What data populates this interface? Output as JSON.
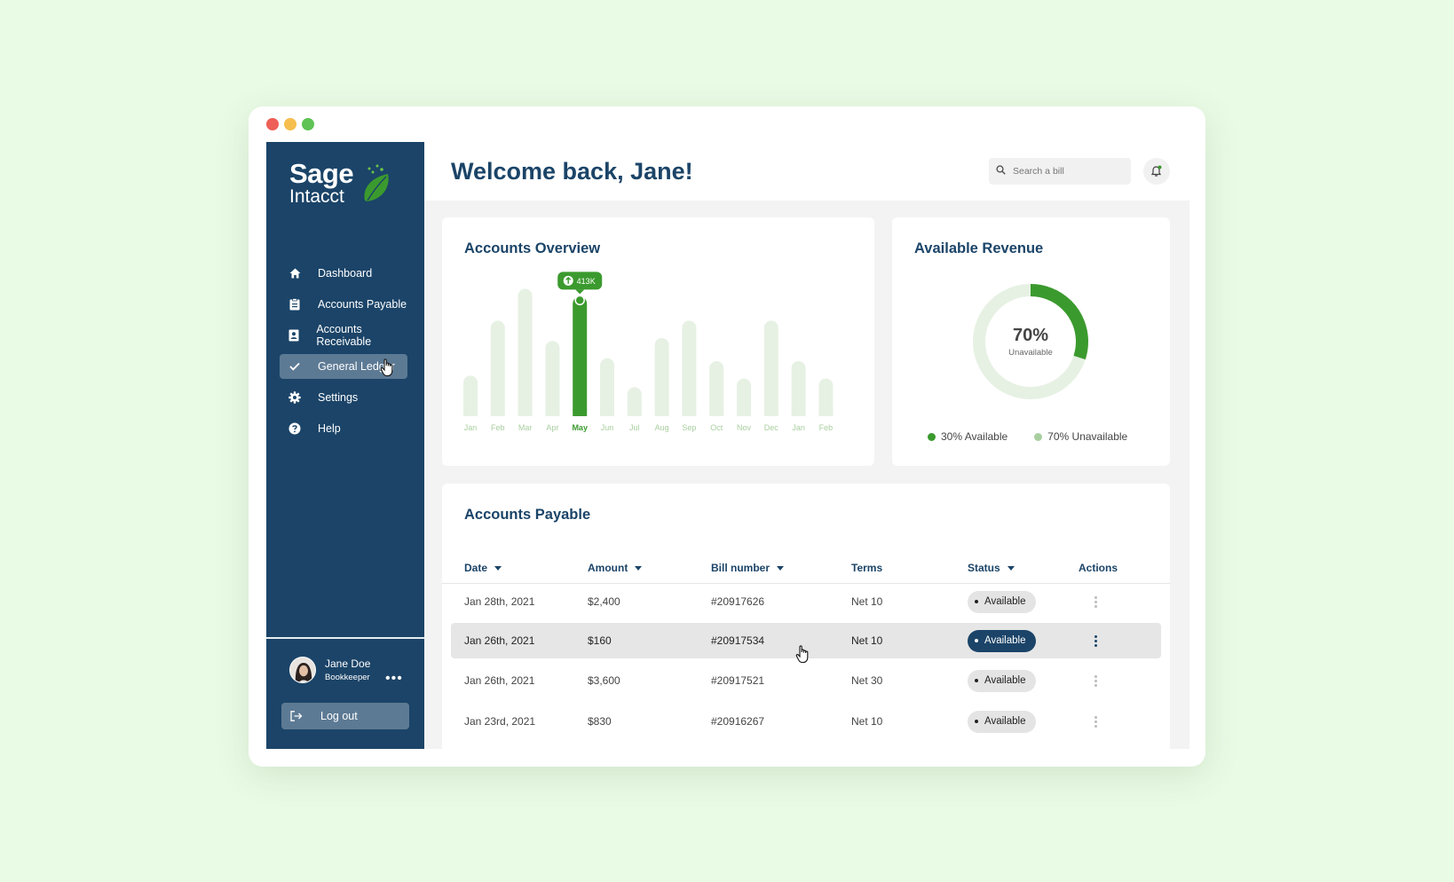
{
  "brand": {
    "name_line1": "Sage",
    "name_line2": "Intacct",
    "accent": "#3b9a2e",
    "navy": "#1b4468"
  },
  "sidebar": {
    "items": [
      {
        "label": "Dashboard",
        "icon": "home-icon"
      },
      {
        "label": "Accounts Payable",
        "icon": "clipboard-icon"
      },
      {
        "label": "Accounts Receivable",
        "icon": "contact-card-icon"
      },
      {
        "label": "General Ledger",
        "icon": "check-icon"
      },
      {
        "label": "Settings",
        "icon": "gear-icon"
      },
      {
        "label": "Help",
        "icon": "help-circle-icon"
      }
    ],
    "user": {
      "name": "Jane Doe",
      "role": "Bookkeeper"
    },
    "logout_label": "Log out"
  },
  "header": {
    "title": "Welcome back, Jane!",
    "search_placeholder": "Search a bill"
  },
  "overview": {
    "title": "Accounts Overview"
  },
  "chart_data": {
    "type": "bar",
    "categories": [
      "Jan",
      "Feb",
      "Mar",
      "Apr",
      "May",
      "Jun",
      "Jul",
      "Aug",
      "Sep",
      "Oct",
      "Nov",
      "Dec",
      "Jan",
      "Feb"
    ],
    "values": [
      140,
      330,
      440,
      260,
      413,
      200,
      100,
      270,
      330,
      190,
      130,
      330,
      190,
      130
    ],
    "highlight_index": 4,
    "highlight_label": "413K",
    "ylim": [
      0,
      460
    ],
    "colors": {
      "bar": "#e6f1e3",
      "highlight": "#3b9a2e",
      "label": "#a9cfa0"
    }
  },
  "revenue": {
    "title": "Available Revenue",
    "center_value": "70%",
    "center_label": "Unavailable",
    "available_fraction": 0.3,
    "legend": [
      {
        "label": "30% Available",
        "color": "#3b9a2e"
      },
      {
        "label": "70% Unavailable",
        "color": "#a9cfa0"
      }
    ]
  },
  "payable": {
    "title": "Accounts Payable",
    "columns": [
      "Date",
      "Amount",
      "Bill number",
      "Terms",
      "Status",
      "Actions"
    ],
    "rows": [
      {
        "date": "Jan 28th, 2021",
        "amount": "$2,400",
        "bill": "#20917626",
        "terms": "Net 10",
        "status": "Available"
      },
      {
        "date": "Jan 26th, 2021",
        "amount": "$160",
        "bill": "#20917534",
        "terms": "Net 10",
        "status": "Available"
      },
      {
        "date": "Jan 26th, 2021",
        "amount": "$3,600",
        "bill": "#20917521",
        "terms": "Net 30",
        "status": "Available"
      },
      {
        "date": "Jan 23rd, 2021",
        "amount": "$830",
        "bill": "#20916267",
        "terms": "Net 10",
        "status": "Available"
      }
    ]
  }
}
